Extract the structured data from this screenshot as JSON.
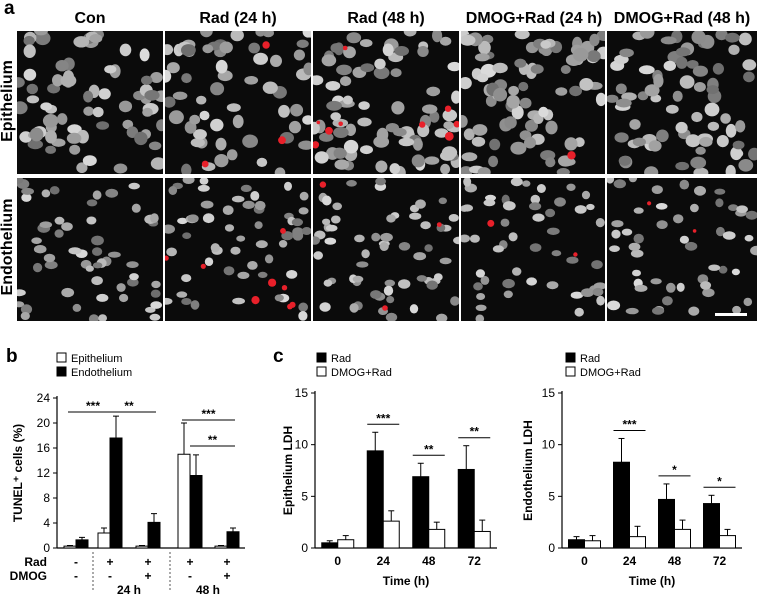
{
  "panel_a": {
    "letter": "a",
    "columns": [
      "Con",
      "Rad (24 h)",
      "Rad (48 h)",
      "DMOG+Rad (24 h)",
      "DMOG+Rad (48 h)"
    ],
    "rows": [
      "Epithelium",
      "Endothelium"
    ]
  },
  "chart_data": [
    {
      "type": "bar",
      "panel": "b",
      "ylabel": "TUNEL⁺ cells (%)",
      "ylim": [
        0,
        24
      ],
      "yticks": [
        0,
        4,
        8,
        12,
        16,
        20,
        24
      ],
      "legend": [
        "Epithelium",
        "Endothelium"
      ],
      "legend_position": "top-left",
      "series_colors": [
        "#ffffff",
        "#000000"
      ],
      "conditions": [
        {
          "rad": "-",
          "dmog": "-"
        },
        {
          "rad": "+",
          "dmog": "-"
        },
        {
          "rad": "+",
          "dmog": "+"
        },
        {
          "rad": "+",
          "dmog": "-"
        },
        {
          "rad": "+",
          "dmog": "+"
        }
      ],
      "row_labels": [
        "Rad",
        "DMOG"
      ],
      "group_labels": [
        "24 h",
        "48 h"
      ],
      "series": [
        {
          "name": "Epithelium",
          "values": [
            0.3,
            2.4,
            0.3,
            15.0,
            0.3
          ],
          "errors": [
            0.1,
            0.8,
            0.1,
            5.0,
            0.1
          ]
        },
        {
          "name": "Endothelium",
          "values": [
            1.3,
            17.6,
            4.1,
            11.6,
            2.6
          ],
          "errors": [
            0.4,
            3.5,
            1.4,
            3.3,
            0.6
          ]
        }
      ],
      "significance": [
        {
          "label": "***",
          "from": 0,
          "to": 1
        },
        {
          "label": "**",
          "from": 1,
          "to": 2
        },
        {
          "label": "***",
          "from": 3,
          "to": 4
        },
        {
          "label": "**",
          "from": 3,
          "to": 4
        }
      ]
    },
    {
      "type": "bar",
      "panel": "c",
      "ylabel": "Epithelium LDH",
      "xlabel": "Time (h)",
      "categories": [
        "0",
        "24",
        "48",
        "72"
      ],
      "ylim": [
        0,
        15
      ],
      "yticks": [
        0,
        5,
        10,
        15
      ],
      "legend": [
        "Rad",
        "DMOG+Rad"
      ],
      "legend_position": "top-left",
      "series_colors": [
        "#000000",
        "#ffffff"
      ],
      "series": [
        {
          "name": "Rad",
          "values": [
            0.5,
            9.4,
            6.9,
            7.6
          ],
          "errors": [
            0.2,
            1.8,
            1.3,
            2.3
          ]
        },
        {
          "name": "DMOG+Rad",
          "values": [
            0.8,
            2.6,
            1.8,
            1.6
          ],
          "errors": [
            0.4,
            1.0,
            0.7,
            1.1
          ]
        }
      ],
      "significance": [
        "",
        "***",
        "**",
        "**"
      ]
    },
    {
      "type": "bar",
      "ylabel": "Endothelium LDH",
      "xlabel": "Time (h)",
      "categories": [
        "0",
        "24",
        "48",
        "72"
      ],
      "ylim": [
        0,
        15
      ],
      "yticks": [
        0,
        5,
        10,
        15
      ],
      "legend": [
        "Rad",
        "DMOG+Rad"
      ],
      "legend_position": "top-left",
      "series_colors": [
        "#000000",
        "#ffffff"
      ],
      "series": [
        {
          "name": "Rad",
          "values": [
            0.8,
            8.3,
            4.7,
            4.3
          ],
          "errors": [
            0.3,
            2.3,
            1.5,
            0.8
          ]
        },
        {
          "name": "DMOG+Rad",
          "values": [
            0.7,
            1.1,
            1.8,
            1.2
          ],
          "errors": [
            0.5,
            1.0,
            0.9,
            0.6
          ]
        }
      ],
      "significance": [
        "",
        "***",
        "*",
        "*"
      ]
    }
  ]
}
